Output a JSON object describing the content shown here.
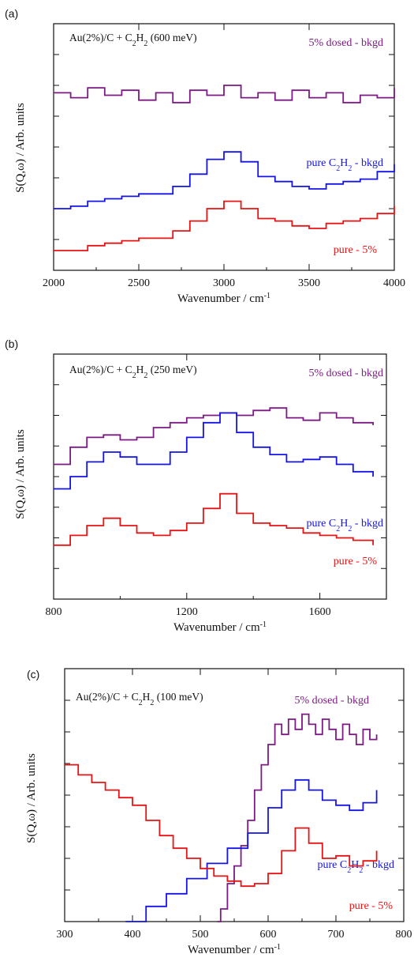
{
  "chart_data": [
    {
      "type": "line",
      "panel_label": "(a)",
      "annotation": {
        "prefix": "Au(2%)/C + C",
        "sub": "2",
        "mid": "H",
        "sub2": "2",
        "suffix": " (600 meV)"
      },
      "xlabel": {
        "text": "Wavenumber / cm",
        "sup": "-1"
      },
      "ylabel": "S(Q,ω) / Arb. units",
      "xlim": [
        2000,
        4000
      ],
      "xticks": [
        2000,
        2500,
        3000,
        3500,
        4000
      ],
      "grid": false,
      "series": [
        {
          "name": "5% dosed - bkgd",
          "color": "#7b1a83",
          "x": [
            2000,
            2100,
            2200,
            2300,
            2400,
            2500,
            2600,
            2700,
            2800,
            2900,
            3000,
            3100,
            3200,
            3300,
            3400,
            3500,
            3600,
            3700,
            3800,
            3900,
            4000
          ],
          "y": [
            0.72,
            0.7,
            0.74,
            0.71,
            0.73,
            0.69,
            0.72,
            0.68,
            0.73,
            0.71,
            0.75,
            0.7,
            0.72,
            0.69,
            0.73,
            0.7,
            0.72,
            0.68,
            0.71,
            0.7,
            0.74
          ]
        },
        {
          "name": "pure C2H2 - bkgd",
          "name_parts": {
            "a": "pure C",
            "sub": "2",
            "b": "H",
            "sub2": "2",
            "c": " - bkgd"
          },
          "color": "#1414e6",
          "x": [
            2000,
            2100,
            2200,
            2300,
            2400,
            2500,
            2600,
            2700,
            2800,
            2900,
            3000,
            3100,
            3200,
            3300,
            3400,
            3500,
            3600,
            3700,
            3800,
            3900,
            4000
          ],
          "y": [
            0.25,
            0.26,
            0.28,
            0.29,
            0.3,
            0.31,
            0.31,
            0.34,
            0.39,
            0.45,
            0.48,
            0.44,
            0.38,
            0.36,
            0.34,
            0.33,
            0.35,
            0.36,
            0.37,
            0.4,
            0.43
          ]
        },
        {
          "name": "pure - 5%",
          "color": "#e61414",
          "x": [
            2000,
            2100,
            2200,
            2300,
            2400,
            2500,
            2600,
            2700,
            2800,
            2900,
            3000,
            3100,
            3200,
            3300,
            3400,
            3500,
            3600,
            3700,
            3800,
            3900,
            4000
          ],
          "y": [
            0.08,
            0.08,
            0.1,
            0.11,
            0.12,
            0.13,
            0.13,
            0.16,
            0.2,
            0.25,
            0.28,
            0.25,
            0.21,
            0.2,
            0.18,
            0.17,
            0.19,
            0.2,
            0.21,
            0.23,
            0.26
          ]
        }
      ]
    },
    {
      "type": "line",
      "panel_label": "(b)",
      "annotation": {
        "prefix": "Au(2%)/C + C",
        "sub": "2",
        "mid": "H",
        "sub2": "2",
        "suffix": " (250 meV)"
      },
      "xlabel": {
        "text": "Wavenumber / cm",
        "sup": "-1"
      },
      "ylabel": "S(Q,ω) / Arb. units",
      "xlim": [
        800,
        1800
      ],
      "xticks": [
        800,
        1200,
        1600
      ],
      "grid": false,
      "series": [
        {
          "name": "5% dosed - bkgd",
          "color": "#7b1a83",
          "x": [
            800,
            850,
            900,
            950,
            1000,
            1050,
            1100,
            1150,
            1200,
            1250,
            1300,
            1350,
            1400,
            1450,
            1500,
            1550,
            1600,
            1650,
            1700,
            1760
          ],
          "y": [
            0.55,
            0.62,
            0.66,
            0.67,
            0.65,
            0.66,
            0.7,
            0.72,
            0.74,
            0.75,
            0.76,
            0.75,
            0.77,
            0.78,
            0.74,
            0.73,
            0.76,
            0.74,
            0.72,
            0.71
          ]
        },
        {
          "name": "pure C2H2 - bkgd",
          "name_parts": {
            "a": "pure C",
            "sub": "2",
            "b": "H",
            "sub2": "2",
            "c": " - bkgd"
          },
          "color": "#1414e6",
          "x": [
            800,
            850,
            900,
            950,
            1000,
            1050,
            1100,
            1150,
            1200,
            1250,
            1300,
            1350,
            1400,
            1450,
            1500,
            1550,
            1600,
            1650,
            1700,
            1760
          ],
          "y": [
            0.45,
            0.5,
            0.56,
            0.6,
            0.58,
            0.55,
            0.55,
            0.6,
            0.66,
            0.72,
            0.76,
            0.68,
            0.62,
            0.59,
            0.56,
            0.57,
            0.58,
            0.55,
            0.52,
            0.5
          ]
        },
        {
          "name": "pure - 5%",
          "color": "#e61414",
          "x": [
            800,
            850,
            900,
            950,
            1000,
            1050,
            1100,
            1150,
            1200,
            1250,
            1300,
            1350,
            1400,
            1450,
            1500,
            1550,
            1600,
            1650,
            1700,
            1760
          ],
          "y": [
            0.22,
            0.26,
            0.3,
            0.33,
            0.3,
            0.27,
            0.26,
            0.28,
            0.31,
            0.37,
            0.43,
            0.35,
            0.31,
            0.3,
            0.29,
            0.27,
            0.26,
            0.25,
            0.24,
            0.22
          ]
        }
      ]
    },
    {
      "type": "line",
      "panel_label": "(c)",
      "annotation": {
        "prefix": "Au(2%)/C + C",
        "sub": "2",
        "mid": "H",
        "sub2": "2",
        "suffix": " (100 meV)"
      },
      "xlabel": {
        "text": "Wavenumber / cm",
        "sup": "-1"
      },
      "ylabel": "S(Q,ω) / Arb. units",
      "xlim": [
        300,
        800
      ],
      "xticks": [
        300,
        400,
        500,
        600,
        700,
        800
      ],
      "grid": false,
      "series": [
        {
          "name": "5% dosed - bkgd",
          "color": "#7b1a83",
          "x": [
            525,
            530,
            540,
            550,
            560,
            570,
            580,
            590,
            600,
            610,
            620,
            630,
            640,
            650,
            660,
            670,
            680,
            690,
            700,
            710,
            720,
            730,
            740,
            750,
            760
          ],
          "y": [
            0.0,
            0.05,
            0.15,
            0.22,
            0.3,
            0.4,
            0.52,
            0.62,
            0.7,
            0.78,
            0.74,
            0.8,
            0.76,
            0.82,
            0.78,
            0.74,
            0.8,
            0.76,
            0.72,
            0.78,
            0.74,
            0.7,
            0.76,
            0.72,
            0.74
          ]
        },
        {
          "name": "pure C2H2 - bkgd",
          "name_parts": {
            "a": "pure C",
            "sub": "2",
            "b": "H",
            "sub2": "2",
            "c": " - bkgd"
          },
          "color": "#1414e6",
          "x": [
            390,
            420,
            450,
            480,
            510,
            540,
            570,
            600,
            620,
            640,
            660,
            680,
            700,
            720,
            740,
            760
          ],
          "y": [
            0.0,
            0.06,
            0.11,
            0.17,
            0.23,
            0.29,
            0.35,
            0.45,
            0.52,
            0.56,
            0.52,
            0.48,
            0.46,
            0.44,
            0.47,
            0.52
          ]
        },
        {
          "name": "pure - 5%",
          "color": "#e61414",
          "x": [
            300,
            320,
            340,
            360,
            380,
            400,
            420,
            440,
            460,
            480,
            500,
            520,
            540,
            560,
            580,
            600,
            620,
            640,
            660,
            680,
            700,
            720,
            740,
            760
          ],
          "y": [
            0.62,
            0.58,
            0.55,
            0.52,
            0.49,
            0.46,
            0.4,
            0.34,
            0.29,
            0.25,
            0.21,
            0.18,
            0.16,
            0.14,
            0.15,
            0.19,
            0.28,
            0.37,
            0.31,
            0.25,
            0.26,
            0.22,
            0.24,
            0.28
          ]
        }
      ]
    }
  ]
}
